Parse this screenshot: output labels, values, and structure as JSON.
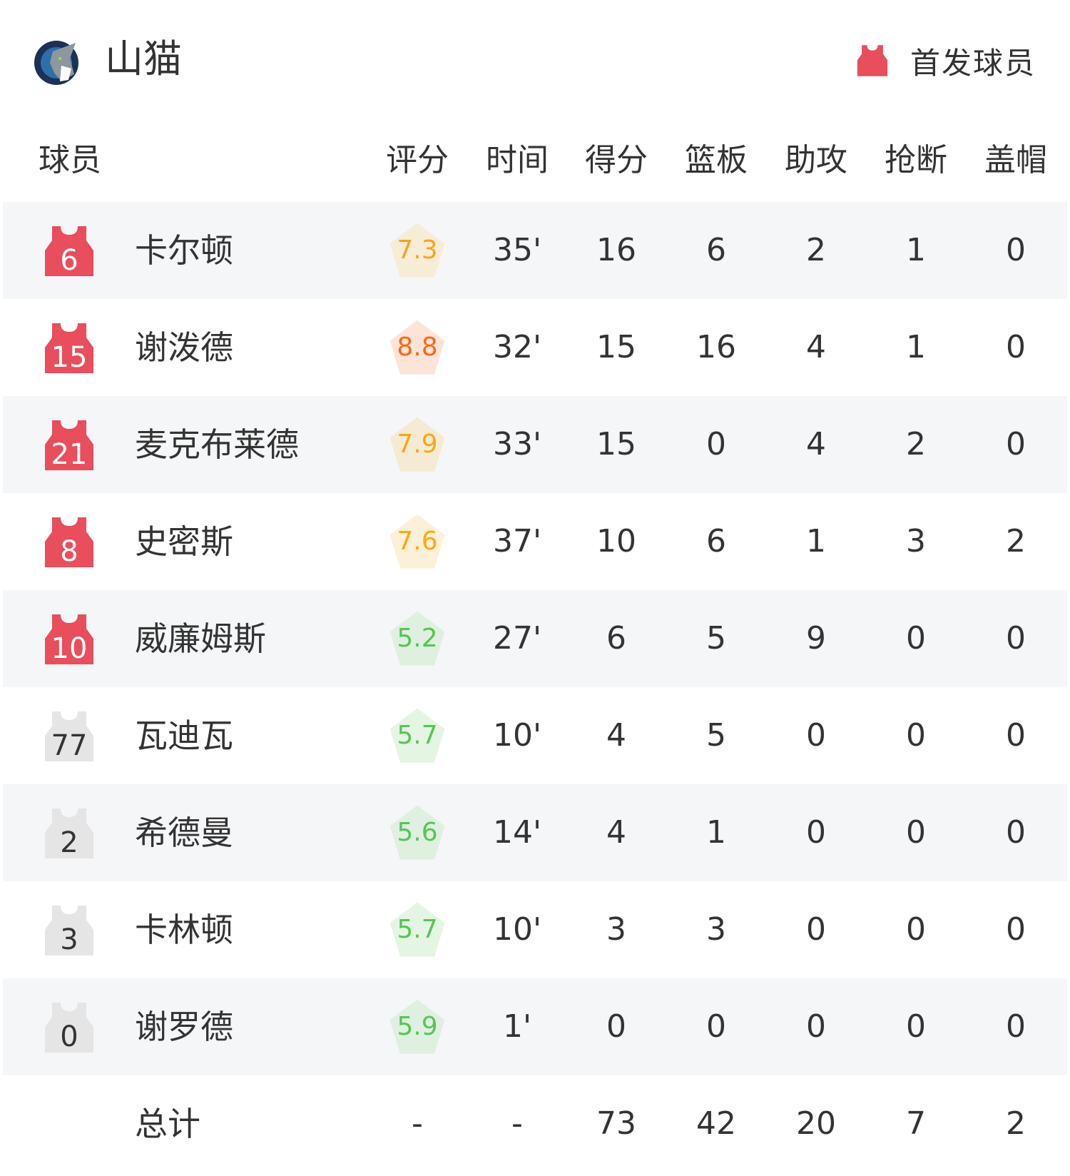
{
  "team": {
    "name": "山猫",
    "logo_text": "MINNESOTA LYNX"
  },
  "legend": {
    "icon": "jersey-icon",
    "label": "首发球员",
    "starter_color": "#e84e5c",
    "bench_color": "#e5e5e5"
  },
  "columns": [
    "球员",
    "评分",
    "时间",
    "得分",
    "篮板",
    "助攻",
    "抢断",
    "盖帽"
  ],
  "players": [
    {
      "number": "6",
      "name": "卡尔顿",
      "starter": true,
      "rating": "7.3",
      "rating_bg": "#f7ecd6",
      "rating_color": "#f5a51d",
      "time": "35'",
      "pts": "16",
      "reb": "6",
      "ast": "2",
      "stl": "1",
      "blk": "0"
    },
    {
      "number": "15",
      "name": "谢泼德",
      "starter": true,
      "rating": "8.8",
      "rating_bg": "#fde4d9",
      "rating_color": "#fb6a10",
      "time": "32'",
      "pts": "15",
      "reb": "16",
      "ast": "4",
      "stl": "1",
      "blk": "0"
    },
    {
      "number": "21",
      "name": "麦克布莱德",
      "starter": true,
      "rating": "7.9",
      "rating_bg": "#f5ead4",
      "rating_color": "#f8a912",
      "time": "33'",
      "pts": "15",
      "reb": "0",
      "ast": "4",
      "stl": "2",
      "blk": "0"
    },
    {
      "number": "8",
      "name": "史密斯",
      "starter": true,
      "rating": "7.6",
      "rating_bg": "#fdf0d8",
      "rating_color": "#f8ab12",
      "time": "37'",
      "pts": "10",
      "reb": "6",
      "ast": "1",
      "stl": "3",
      "blk": "2"
    },
    {
      "number": "10",
      "name": "威廉姆斯",
      "starter": true,
      "rating": "5.2",
      "rating_bg": "#dff0e0",
      "rating_color": "#55c653",
      "time": "27'",
      "pts": "6",
      "reb": "5",
      "ast": "9",
      "stl": "0",
      "blk": "0"
    },
    {
      "number": "77",
      "name": "瓦迪瓦",
      "starter": false,
      "rating": "5.7",
      "rating_bg": "#e4f5e3",
      "rating_color": "#55c653",
      "time": "10'",
      "pts": "4",
      "reb": "5",
      "ast": "0",
      "stl": "0",
      "blk": "0"
    },
    {
      "number": "2",
      "name": "希德曼",
      "starter": false,
      "rating": "5.6",
      "rating_bg": "#dff0e0",
      "rating_color": "#55c653",
      "time": "14'",
      "pts": "4",
      "reb": "1",
      "ast": "0",
      "stl": "0",
      "blk": "0"
    },
    {
      "number": "3",
      "name": "卡林顿",
      "starter": false,
      "rating": "5.7",
      "rating_bg": "#e4f5e3",
      "rating_color": "#55c653",
      "time": "10'",
      "pts": "3",
      "reb": "3",
      "ast": "0",
      "stl": "0",
      "blk": "0"
    },
    {
      "number": "0",
      "name": "谢罗德",
      "starter": false,
      "rating": "5.9",
      "rating_bg": "#dff0e0",
      "rating_color": "#55c653",
      "time": "1'",
      "pts": "0",
      "reb": "0",
      "ast": "0",
      "stl": "0",
      "blk": "0"
    }
  ],
  "totals": {
    "label": "总计",
    "rating": "-",
    "time": "-",
    "pts": "73",
    "reb": "42",
    "ast": "20",
    "stl": "7",
    "blk": "2"
  }
}
